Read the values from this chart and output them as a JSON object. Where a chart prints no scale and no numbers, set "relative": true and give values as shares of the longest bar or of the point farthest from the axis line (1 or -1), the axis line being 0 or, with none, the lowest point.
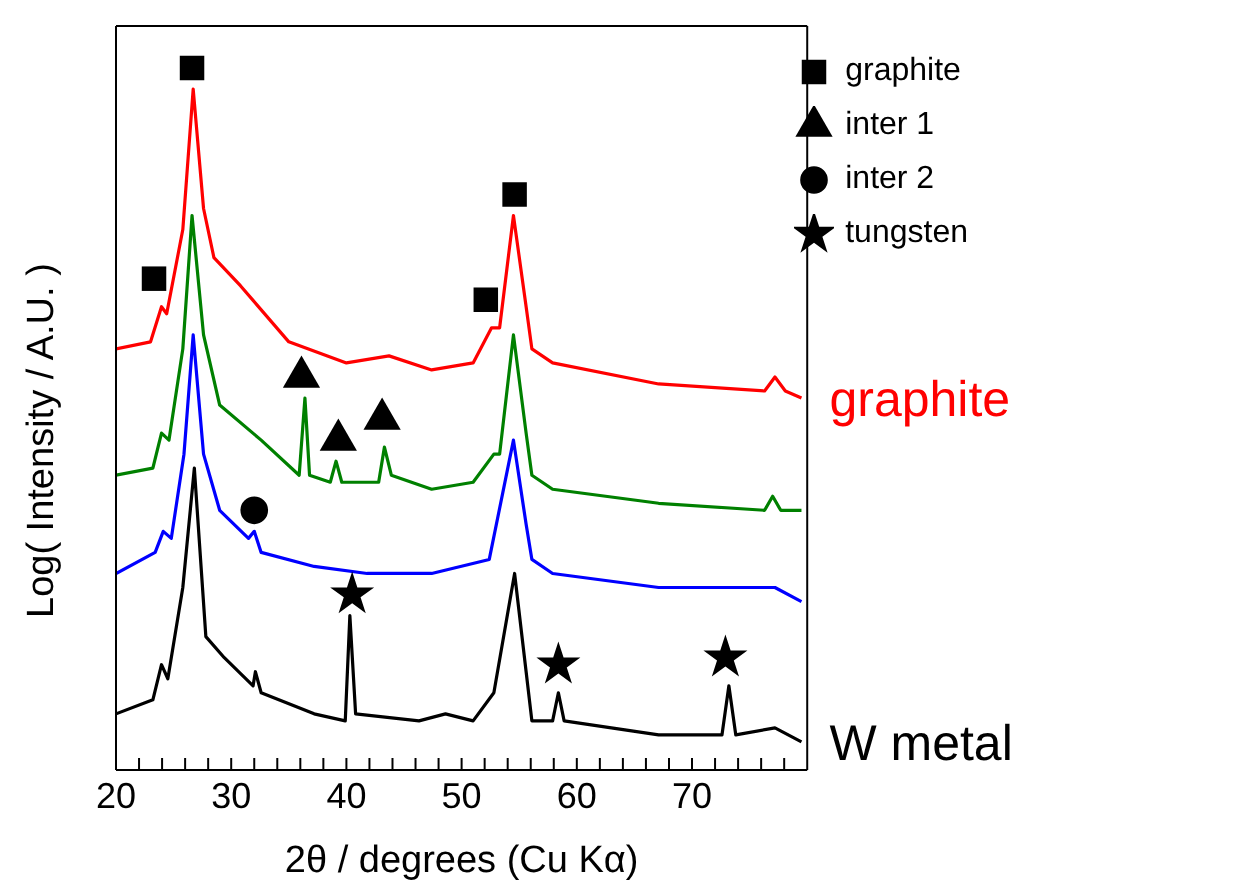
{
  "chart_data": {
    "type": "line",
    "relative": true,
    "xlabel": "2θ / degrees (Cu Kα)",
    "ylabel": "Log( Intensity / A.U. )",
    "xlim": [
      20,
      80
    ],
    "xticks": [
      20,
      {
        "value": 22,
        "label": null
      },
      {
        "value": 24,
        "label": null
      },
      {
        "value": 26,
        "label": null
      },
      {
        "value": 28,
        "label": null
      },
      30,
      {
        "value": 32,
        "label": null
      },
      {
        "value": 34,
        "label": null
      },
      {
        "value": 36,
        "label": null
      },
      {
        "value": 38,
        "label": null
      },
      40,
      {
        "value": 42,
        "label": null
      },
      {
        "value": 44,
        "label": null
      },
      {
        "value": 46,
        "label": null
      },
      {
        "value": 48,
        "label": null
      },
      50,
      {
        "value": 52,
        "label": null
      },
      {
        "value": 54,
        "label": null
      },
      {
        "value": 56,
        "label": null
      },
      {
        "value": 58,
        "label": null
      },
      60,
      {
        "value": 62,
        "label": null
      },
      {
        "value": 64,
        "label": null
      },
      {
        "value": 66,
        "label": null
      },
      {
        "value": 68,
        "label": null
      },
      70,
      {
        "value": 72,
        "label": null
      },
      {
        "value": 74,
        "label": null
      },
      {
        "value": 76,
        "label": null
      },
      {
        "value": 78,
        "label": null
      }
    ],
    "grid": false,
    "legend": "top right",
    "marker": "none",
    "line_style": "solid",
    "series": [
      {
        "name": "graphite",
        "color": "#ff0000",
        "x": [
          20,
          23.0,
          23.95,
          24.4,
          25.8,
          26.7,
          27.6,
          28.5,
          30.8,
          35.0,
          40.0,
          43.7,
          47.4,
          51.0,
          52.6,
          53.3,
          54.5,
          55.6,
          56.1,
          57.9,
          67.1,
          76.3,
          77.2,
          78.1,
          79.5
        ],
        "values": [
          0.6,
          0.61,
          0.66,
          0.65,
          0.77,
          0.97,
          0.8,
          0.73,
          0.69,
          0.61,
          0.58,
          0.59,
          0.57,
          0.58,
          0.63,
          0.63,
          0.79,
          0.66,
          0.6,
          0.58,
          0.55,
          0.54,
          0.56,
          0.54,
          0.53
        ]
      },
      {
        "color": "#008000",
        "x": [
          20,
          23.2,
          23.95,
          24.6,
          25.8,
          26.6,
          27.6,
          29.0,
          32.6,
          35.9,
          36.4,
          36.8,
          38.6,
          39.1,
          39.6,
          42.8,
          43.3,
          43.9,
          47.4,
          51.0,
          52.8,
          53.3,
          54.5,
          55.6,
          56.1,
          57.9,
          67.1,
          76.3,
          77.0,
          77.7,
          79.5
        ],
        "values": [
          0.42,
          0.43,
          0.48,
          0.47,
          0.6,
          0.79,
          0.62,
          0.52,
          0.47,
          0.42,
          0.53,
          0.42,
          0.41,
          0.44,
          0.41,
          0.41,
          0.46,
          0.42,
          0.4,
          0.41,
          0.45,
          0.45,
          0.62,
          0.48,
          0.42,
          0.4,
          0.38,
          0.37,
          0.39,
          0.37,
          0.37
        ]
      },
      {
        "color": "#0000ff",
        "x": [
          20,
          23.4,
          24.1,
          24.8,
          25.9,
          26.7,
          27.6,
          29.0,
          31.5,
          32.0,
          32.6,
          37.2,
          41.8,
          47.4,
          52.4,
          54.5,
          55.6,
          56.1,
          57.9,
          67.1,
          77.2,
          79.5
        ],
        "values": [
          0.28,
          0.31,
          0.34,
          0.33,
          0.45,
          0.62,
          0.45,
          0.37,
          0.33,
          0.34,
          0.31,
          0.29,
          0.28,
          0.28,
          0.3,
          0.47,
          0.35,
          0.3,
          0.28,
          0.26,
          0.26,
          0.24
        ]
      },
      {
        "name": "W metal",
        "color": "#000000",
        "x": [
          20,
          23.2,
          23.95,
          24.5,
          25.8,
          26.8,
          27.8,
          29.4,
          31.9,
          32.1,
          32.6,
          37.2,
          39.9,
          40.3,
          40.8,
          46.3,
          48.6,
          51.0,
          52.8,
          54.6,
          55.6,
          56.1,
          57.9,
          58.4,
          58.9,
          67.1,
          72.6,
          73.2,
          73.8,
          77.2,
          79.5
        ],
        "values": [
          0.08,
          0.1,
          0.15,
          0.13,
          0.26,
          0.43,
          0.19,
          0.16,
          0.12,
          0.14,
          0.11,
          0.08,
          0.07,
          0.22,
          0.08,
          0.07,
          0.08,
          0.07,
          0.11,
          0.28,
          0.14,
          0.07,
          0.07,
          0.11,
          0.07,
          0.05,
          0.05,
          0.12,
          0.05,
          0.06,
          0.04
        ]
      },
      {
        "name": "graphite",
        "type": "scatter",
        "marker": "square",
        "color": "#000000",
        "x": [
          23.3,
          26.6,
          52.1,
          54.6
        ],
        "values": [
          0.7,
          1.0,
          0.67,
          0.82
        ]
      },
      {
        "name": "inter 1",
        "type": "scatter",
        "marker": "triangle",
        "color": "#000000",
        "x": [
          36.1,
          39.3,
          43.1
        ],
        "values": [
          0.56,
          0.47,
          0.5
        ]
      },
      {
        "name": "inter 2",
        "type": "scatter",
        "marker": "circle",
        "color": "#000000",
        "x": [
          32.0
        ],
        "values": [
          0.37
        ]
      },
      {
        "name": "tungsten",
        "type": "scatter",
        "marker": "star",
        "color": "#000000",
        "x": [
          40.5,
          58.4,
          72.9
        ],
        "values": [
          0.25,
          0.15,
          0.16
        ]
      }
    ]
  }
}
